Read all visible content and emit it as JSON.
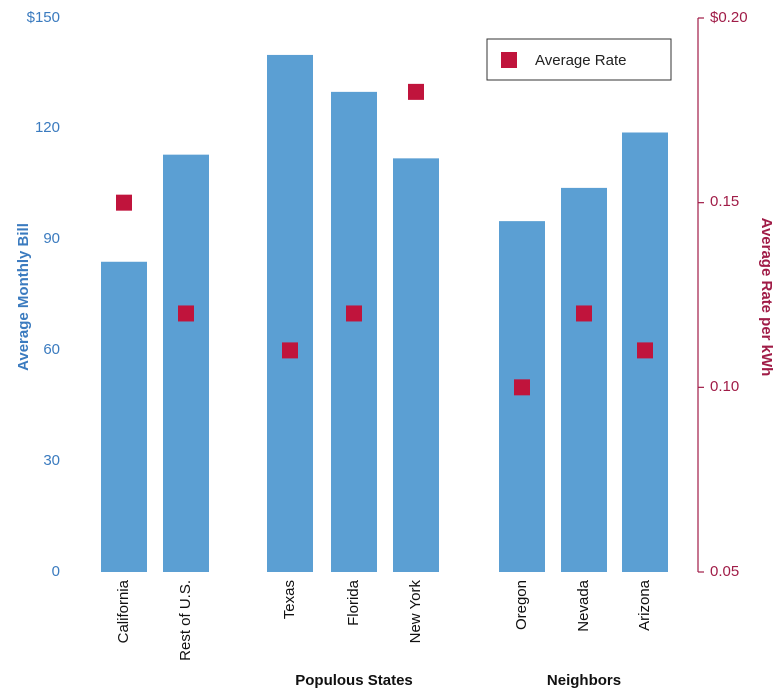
{
  "chart_data": {
    "type": "bar",
    "categories": [
      "California",
      "Rest of U.S.",
      "Texas",
      "Florida",
      "New York",
      "Oregon",
      "Nevada",
      "Arizona"
    ],
    "groups": [
      {
        "label": "Populous States",
        "members": [
          "Texas",
          "Florida",
          "New York"
        ]
      },
      {
        "label": "Neighbors",
        "members": [
          "Oregon",
          "Nevada",
          "Arizona"
        ]
      }
    ],
    "series": [
      {
        "values": [
          84,
          113,
          140,
          130,
          112,
          95,
          104,
          119
        ]
      },
      {
        "name": "Average Rate",
        "values": [
          0.15,
          0.12,
          0.11,
          0.12,
          0.18,
          0.1,
          0.12,
          0.11
        ]
      }
    ],
    "ylabel": "Average Monthly Bill",
    "ylabel_right": "Average Rate per kWh",
    "ylim": [
      0,
      150
    ],
    "ylim_right": [
      0.05,
      0.2
    ],
    "yticks": [
      "0",
      "30",
      "60",
      "90",
      "120",
      "$150"
    ],
    "yticks_right": [
      "0.05",
      "0.10",
      "0.15",
      "$0.20"
    ],
    "legend": {
      "label": "Average Rate",
      "position": "top-right"
    },
    "grid": false,
    "colors": {
      "bar": "#5b9fd3",
      "marker": "#c0143c",
      "left_axis": "#3b7bbf",
      "right_axis": "#a01c47"
    }
  }
}
